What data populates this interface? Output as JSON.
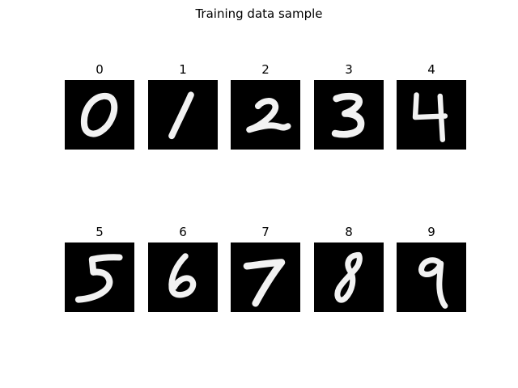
{
  "figure": {
    "title": "Training data sample",
    "colormap": "gray",
    "background_color": "#ffffff",
    "cell_background": "#000000",
    "stroke_color": "#f2f2f2"
  },
  "panels": [
    {
      "label": "0",
      "digit": "0"
    },
    {
      "label": "1",
      "digit": "1"
    },
    {
      "label": "2",
      "digit": "2"
    },
    {
      "label": "3",
      "digit": "3"
    },
    {
      "label": "4",
      "digit": "4"
    },
    {
      "label": "5",
      "digit": "5"
    },
    {
      "label": "6",
      "digit": "6"
    },
    {
      "label": "7",
      "digit": "7"
    },
    {
      "label": "8",
      "digit": "8"
    },
    {
      "label": "9",
      "digit": "9"
    }
  ]
}
